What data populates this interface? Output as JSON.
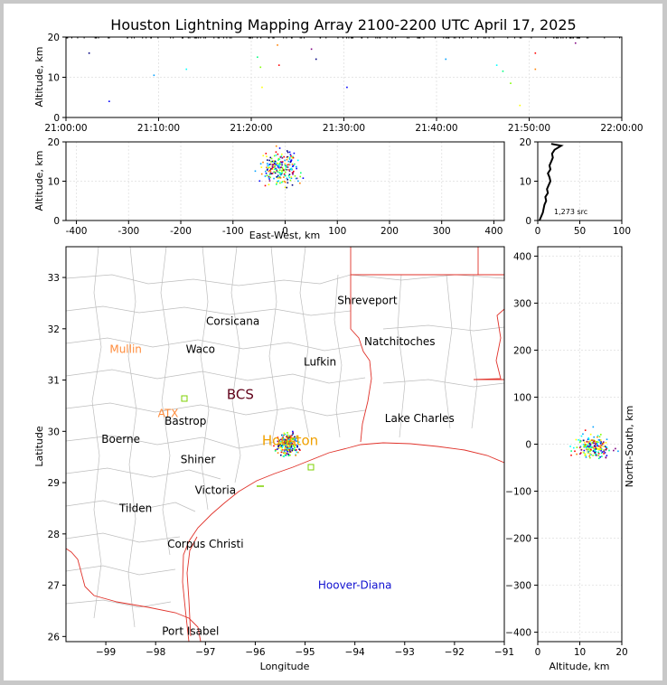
{
  "title": "Houston Lightning Mapping Array 2100-2200 UTC April 17, 2025",
  "colors": {
    "background": "#ffffff",
    "border": "#c8c8c8",
    "county_lines": "#bdbdbd",
    "coast_state": "#e0322a",
    "point_palette": [
      "#000080",
      "#0000ff",
      "#00a0ff",
      "#00ffff",
      "#00ff80",
      "#80ff00",
      "#ffff00",
      "#ff8000",
      "#ff0000",
      "#800080"
    ]
  },
  "chart_data": [
    {
      "type": "scatter",
      "panel": "altitude-time",
      "ylabel": "Altitude, km",
      "xlim": [
        "21:00:00",
        "22:00:00"
      ],
      "ylim": [
        0,
        20
      ],
      "xticks": [
        "21:00:00",
        "21:10:00",
        "21:20:00",
        "21:30:00",
        "21:40:00",
        "21:50:00",
        "22:00:00"
      ],
      "yticks": [
        0,
        10,
        20
      ],
      "grid": true,
      "points": [
        {
          "t": "21:02:30",
          "alt": 16.0
        },
        {
          "t": "21:04:40",
          "alt": 4.0
        },
        {
          "t": "21:09:30",
          "alt": 10.5
        },
        {
          "t": "21:13:00",
          "alt": 12.0
        },
        {
          "t": "21:20:40",
          "alt": 15.0
        },
        {
          "t": "21:21:00",
          "alt": 12.5
        },
        {
          "t": "21:21:10",
          "alt": 7.5
        },
        {
          "t": "21:22:50",
          "alt": 18.0
        },
        {
          "t": "21:23:00",
          "alt": 13.0
        },
        {
          "t": "21:26:30",
          "alt": 17.0
        },
        {
          "t": "21:27:00",
          "alt": 14.5
        },
        {
          "t": "21:30:20",
          "alt": 7.5
        },
        {
          "t": "21:41:00",
          "alt": 14.5
        },
        {
          "t": "21:46:30",
          "alt": 13.0
        },
        {
          "t": "21:47:10",
          "alt": 11.5
        },
        {
          "t": "21:48:00",
          "alt": 8.5
        },
        {
          "t": "21:49:00",
          "alt": 3.0
        },
        {
          "t": "21:50:40",
          "alt": 12.0
        },
        {
          "t": "21:50:40",
          "alt": 16.0
        },
        {
          "t": "21:55:00",
          "alt": 18.5
        }
      ]
    },
    {
      "type": "scatter",
      "panel": "altitude-east-west",
      "xlabel": "East-West, km",
      "ylabel": "Altitude, km",
      "xlim": [
        -420,
        420
      ],
      "ylim": [
        0,
        20
      ],
      "xticks": [
        -400,
        -300,
        -200,
        -100,
        0,
        100,
        200,
        300,
        400
      ],
      "yticks": [
        0,
        10,
        20
      ],
      "grid": true
    },
    {
      "type": "line",
      "panel": "altitude-histogram",
      "annotation": "1,273 src",
      "xlim": [
        0,
        100
      ],
      "ylim": [
        0,
        20
      ],
      "xticks": [
        0,
        50,
        100
      ],
      "yticks": [
        0,
        10,
        20
      ],
      "grid": true,
      "profile": [
        {
          "alt": 0.0,
          "count": 2
        },
        {
          "alt": 1.0,
          "count": 4
        },
        {
          "alt": 2.0,
          "count": 6
        },
        {
          "alt": 3.0,
          "count": 7
        },
        {
          "alt": 4.0,
          "count": 8
        },
        {
          "alt": 5.0,
          "count": 10
        },
        {
          "alt": 6.0,
          "count": 9
        },
        {
          "alt": 7.0,
          "count": 12
        },
        {
          "alt": 8.0,
          "count": 11
        },
        {
          "alt": 9.0,
          "count": 13
        },
        {
          "alt": 10.0,
          "count": 15
        },
        {
          "alt": 11.0,
          "count": 14
        },
        {
          "alt": 12.0,
          "count": 12
        },
        {
          "alt": 13.0,
          "count": 15
        },
        {
          "alt": 14.0,
          "count": 14
        },
        {
          "alt": 15.0,
          "count": 16
        },
        {
          "alt": 16.0,
          "count": 18
        },
        {
          "alt": 17.0,
          "count": 17
        },
        {
          "alt": 18.0,
          "count": 20
        },
        {
          "alt": 19.0,
          "count": 28
        },
        {
          "alt": 19.5,
          "count": 16
        }
      ]
    },
    {
      "type": "scatter",
      "panel": "plan-view-map",
      "xlabel": "Longitude",
      "ylabel": "Latitude",
      "xlim": [
        -99.8,
        -91.0
      ],
      "ylim": [
        25.9,
        33.6
      ],
      "xticks": [
        -99,
        -98,
        -97,
        -96,
        -95,
        -94,
        -93,
        -92,
        -91
      ],
      "yticks": [
        26,
        27,
        28,
        29,
        30,
        31,
        32,
        33
      ],
      "cities": [
        {
          "name": "Shreveport",
          "lon": -93.75,
          "lat": 32.55,
          "color": "#000000"
        },
        {
          "name": "Corsicana",
          "lon": -96.45,
          "lat": 32.15,
          "color": "#000000"
        },
        {
          "name": "Natchitoches",
          "lon": -93.1,
          "lat": 31.75,
          "color": "#000000"
        },
        {
          "name": "Mullin",
          "lon": -98.6,
          "lat": 31.6,
          "color": "#ff8c3c"
        },
        {
          "name": "Waco",
          "lon": -97.1,
          "lat": 31.6,
          "color": "#000000"
        },
        {
          "name": "Lufkin",
          "lon": -94.7,
          "lat": 31.35,
          "color": "#000000"
        },
        {
          "name": "BCS",
          "lon": -96.3,
          "lat": 30.7,
          "color": "#600018"
        },
        {
          "name": "ATX",
          "lon": -97.75,
          "lat": 30.35,
          "color": "#ff8c3c"
        },
        {
          "name": "Bastrop",
          "lon": -97.4,
          "lat": 30.2,
          "color": "#000000"
        },
        {
          "name": "Lake Charles",
          "lon": -92.7,
          "lat": 30.25,
          "color": "#000000"
        },
        {
          "name": "Boerne",
          "lon": -98.7,
          "lat": 29.85,
          "color": "#000000"
        },
        {
          "name": "Houston",
          "lon": -95.3,
          "lat": 29.8,
          "color": "#f0a000"
        },
        {
          "name": "Shiner",
          "lon": -97.15,
          "lat": 29.45,
          "color": "#000000"
        },
        {
          "name": "Victoria",
          "lon": -96.8,
          "lat": 28.85,
          "color": "#000000"
        },
        {
          "name": "Tilden",
          "lon": -98.4,
          "lat": 28.5,
          "color": "#000000"
        },
        {
          "name": "Corpus Christi",
          "lon": -97.0,
          "lat": 27.8,
          "color": "#000000"
        },
        {
          "name": "Hoover-Diana",
          "lon": -94.0,
          "lat": 27.0,
          "color": "#1010d0"
        },
        {
          "name": "Port Isabel",
          "lon": -97.3,
          "lat": 26.1,
          "color": "#000000"
        }
      ]
    },
    {
      "type": "scatter",
      "panel": "north-south-altitude",
      "xlabel": "Altitude, km",
      "ylabel": "North-South, km",
      "xlim": [
        0,
        20
      ],
      "ylim": [
        -420,
        420
      ],
      "xticks": [
        0,
        10,
        20
      ],
      "yticks": [
        -400,
        -300,
        -200,
        -100,
        0,
        100,
        200,
        300,
        400
      ],
      "grid": true
    }
  ]
}
